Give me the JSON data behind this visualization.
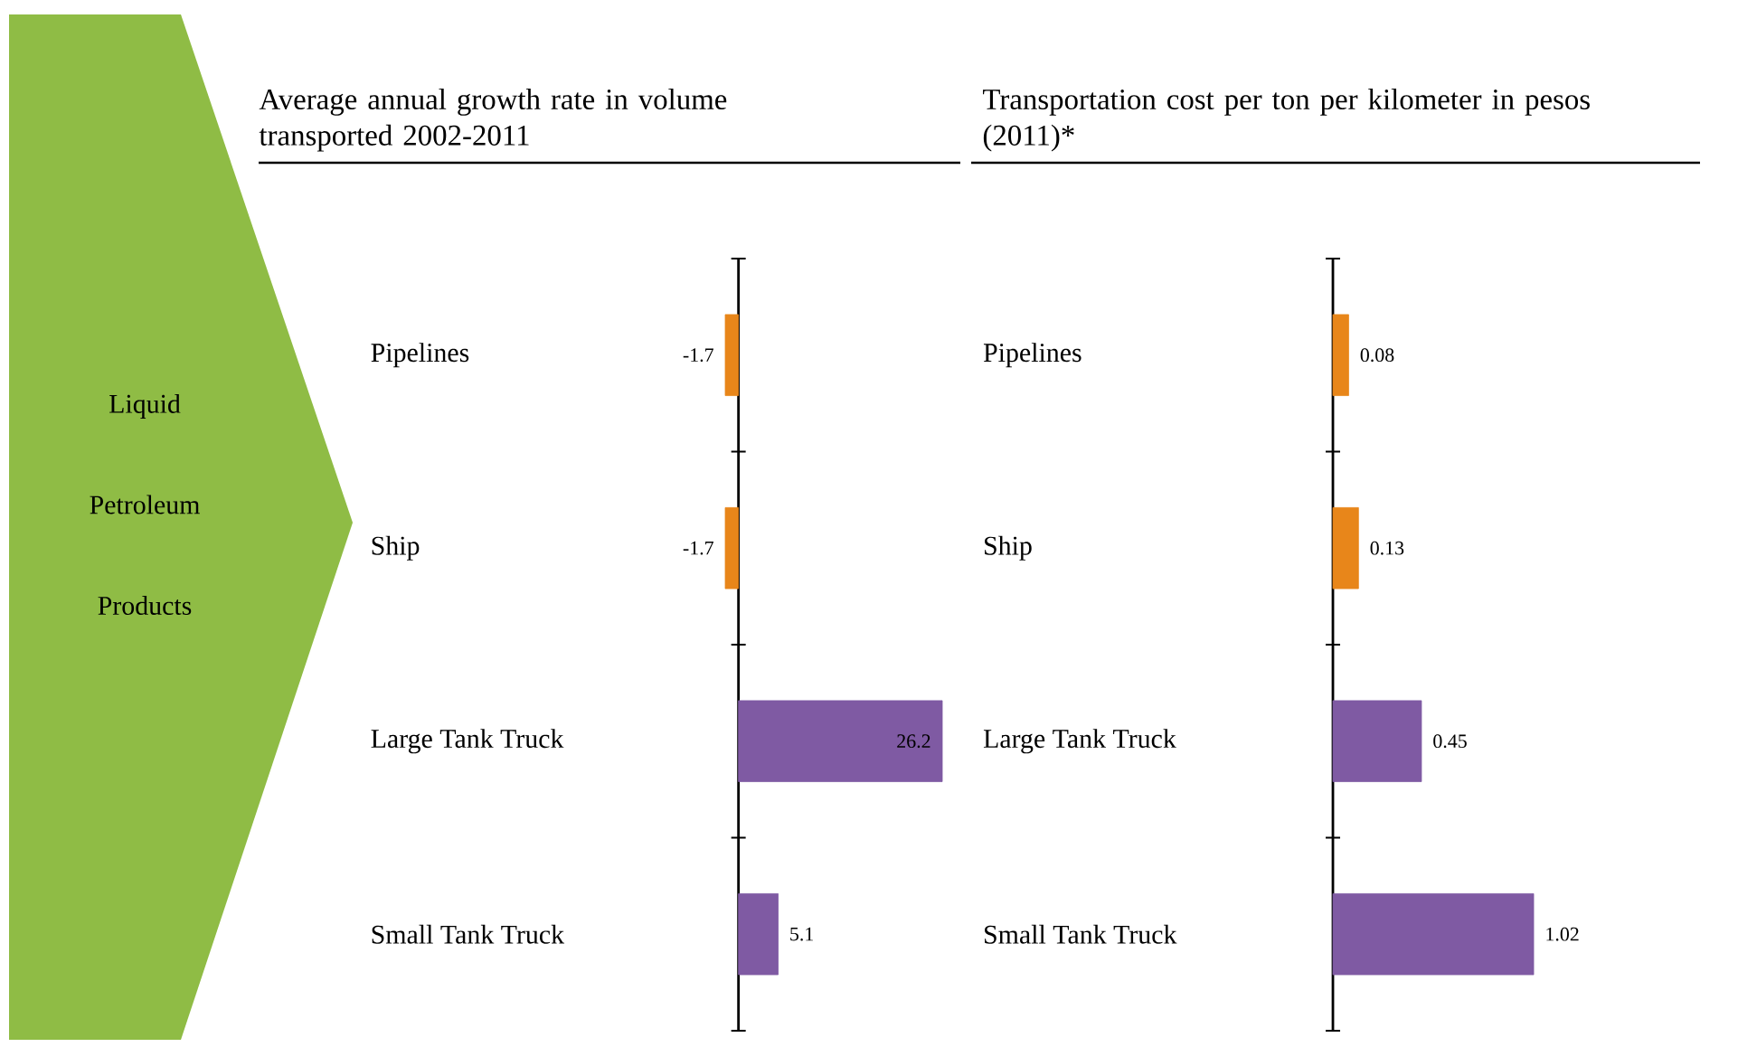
{
  "chart_data": [
    {
      "type": "bar",
      "orientation": "horizontal",
      "title": "Average annual growth rate in volume transported 2002-2011",
      "categories": [
        "Pipelines",
        "Ship",
        "Large Tank Truck",
        "Small Tank Truck"
      ],
      "values": [
        -1.7,
        -1.7,
        26.2,
        5.1
      ],
      "colors": [
        "#e8861a",
        "#e8861a",
        "#7f5aa3",
        "#7f5aa3"
      ],
      "xlim": [
        -1.7,
        26.2
      ],
      "data_labels": true,
      "tick_labels": "y",
      "annotations": [
        "Liquid Petroleum Products"
      ]
    },
    {
      "type": "bar",
      "orientation": "horizontal",
      "title": "Transportation cost per ton per kilometer in pesos (2011)*",
      "categories": [
        "Pipelines",
        "Ship",
        "Large Tank Truck",
        "Small Tank Truck"
      ],
      "values": [
        0.08,
        0.13,
        0.45,
        1.02
      ],
      "colors": [
        "#e8861a",
        "#e8861a",
        "#7f5aa3",
        "#7f5aa3"
      ],
      "xlim": [
        0,
        1.02
      ],
      "data_labels": true,
      "tick_labels": "y"
    }
  ]
}
